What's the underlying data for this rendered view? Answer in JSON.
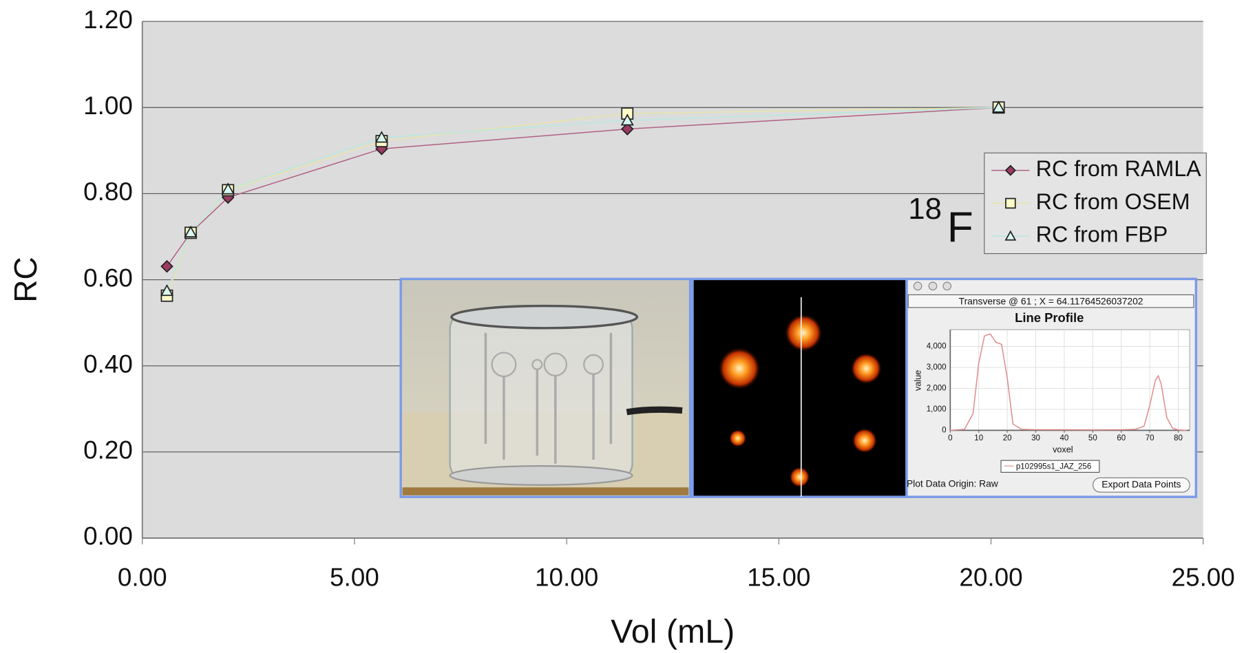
{
  "chart_data": [
    {
      "type": "line",
      "xlabel": "Vol (mL)",
      "ylabel": "RC",
      "annotations": [
        "18",
        "F"
      ],
      "xlim": [
        0,
        25
      ],
      "xticks": [
        {
          "value": 0,
          "label": "0.00"
        },
        {
          "value": 5,
          "label": "5.00"
        },
        {
          "value": 10,
          "label": "10.00"
        },
        {
          "value": 15,
          "label": "15.00"
        },
        {
          "value": 20,
          "label": "20.00"
        },
        {
          "value": 25,
          "label": "25.00"
        }
      ],
      "ylim": [
        0,
        1.2
      ],
      "yticks": [
        {
          "value": 0,
          "label": "0.00"
        },
        {
          "value": 0.2,
          "label": "0.20"
        },
        {
          "value": 0.4,
          "label": "0.40"
        },
        {
          "value": 0.6,
          "label": "0.60"
        },
        {
          "value": 0.8,
          "label": "0.80"
        },
        {
          "value": 1,
          "label": "1.00"
        },
        {
          "value": 1.2,
          "label": "1.20"
        }
      ],
      "grid": true,
      "legend": "right",
      "x": [
        0.58,
        1.14,
        2.02,
        5.64,
        11.43,
        20.18
      ],
      "series": [
        {
          "name": "RC from RAMLA",
          "color": "#b06084",
          "marker": "diamond",
          "marker_color": "#9b3a62",
          "values": [
            0.631,
            0.709,
            0.791,
            0.904,
            0.95,
            1.0
          ]
        },
        {
          "name": "RC from OSEM",
          "color": "#e8e4a8",
          "marker": "square",
          "marker_color": "#fffbc8",
          "values": [
            0.563,
            0.709,
            0.808,
            0.922,
            0.986,
            1.0
          ]
        },
        {
          "name": "RC from FBP",
          "color": "#b8e8e0",
          "marker": "triangle",
          "marker_color": "#d9f7f0",
          "values": [
            0.574,
            0.71,
            0.81,
            0.93,
            0.97,
            1.0
          ]
        }
      ]
    },
    {
      "type": "line",
      "header": "Transverse @ 61 ; X = 64.11764526037202",
      "title": "Line Profile",
      "xlabel": "voxel",
      "ylabel": "value",
      "footer": "Plot Data Origin: Raw",
      "button": "Export Data Points",
      "xlim": [
        0,
        84
      ],
      "xticks": [
        0,
        10,
        20,
        30,
        40,
        50,
        60,
        70,
        80
      ],
      "ylim": [
        0,
        4800
      ],
      "yticks": [
        0,
        {
          "value": 1000,
          "label": "1,000"
        },
        {
          "value": 2000,
          "label": "2,000"
        },
        {
          "value": 3000,
          "label": "3,000"
        },
        {
          "value": 4000,
          "label": "4,000"
        }
      ],
      "grid": true,
      "x": [
        0,
        5,
        8,
        10,
        12,
        14,
        16,
        18,
        20,
        22,
        25,
        30,
        40,
        50,
        60,
        65,
        68,
        70,
        72,
        73,
        74,
        76,
        78,
        80,
        83
      ],
      "series": [
        {
          "name": "p102995s1_JAZ_256",
          "color": "#e08a8a",
          "values": [
            0,
            50,
            800,
            3200,
            4500,
            4600,
            4200,
            4100,
            2500,
            300,
            50,
            30,
            30,
            20,
            30,
            50,
            200,
            1200,
            2400,
            2600,
            2200,
            600,
            100,
            20,
            0
          ]
        }
      ]
    }
  ]
}
